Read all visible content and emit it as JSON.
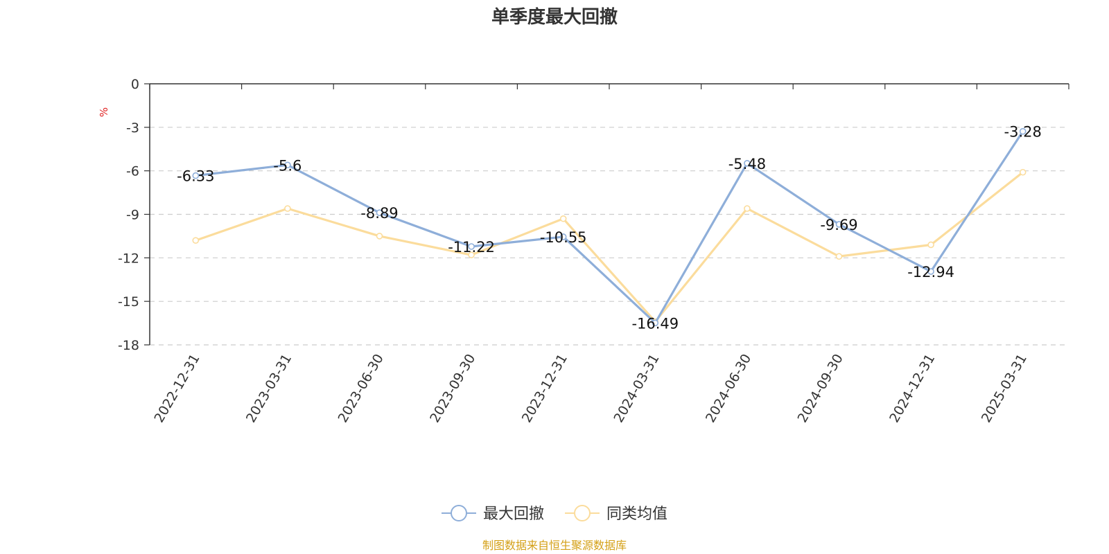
{
  "colors": {
    "series_max_drawdown": "#8eaed9",
    "series_peer_avg": "#fbdc9c",
    "unit": "#e02020",
    "source": "#d4a017",
    "axis": "#333333",
    "grid": "#cccccc"
  },
  "chart_data": {
    "type": "line",
    "title": "单季度最大回撤",
    "ylabel": "%",
    "ylim": [
      -18,
      0
    ],
    "yticks": [
      0,
      -3,
      -6,
      -9,
      -12,
      -15,
      -18
    ],
    "grid": true,
    "legend_position": "bottom-center",
    "categories": [
      "2022-12-31",
      "2023-03-31",
      "2023-06-30",
      "2023-09-30",
      "2023-12-31",
      "2024-03-31",
      "2024-06-30",
      "2024-09-30",
      "2024-12-31",
      "2025-03-31"
    ],
    "series": [
      {
        "name": "最大回撤",
        "values": [
          -6.33,
          -5.6,
          -8.89,
          -11.22,
          -10.55,
          -16.49,
          -5.48,
          -9.69,
          -12.94,
          -3.28
        ],
        "labels": [
          "-6.33",
          "-5.6",
          "-8.89",
          "-11.22",
          "-10.55",
          "-16.49",
          "-5.48",
          "-9.69",
          "-12.94",
          "-3.28"
        ]
      },
      {
        "name": "同类均值",
        "values": [
          -10.8,
          -8.6,
          -10.5,
          -11.8,
          -9.3,
          -16.4,
          -8.6,
          -11.9,
          -11.1,
          -6.1
        ]
      }
    ]
  },
  "source": "制图数据来自恒生聚源数据库"
}
